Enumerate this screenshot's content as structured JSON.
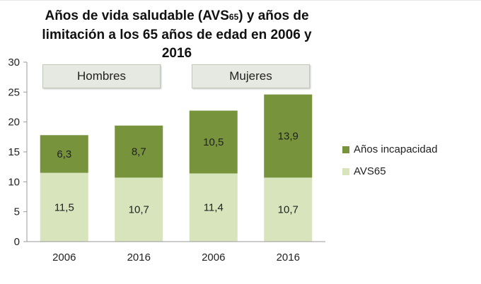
{
  "title": {
    "line1_pre": "Años de vida saludable (AVS",
    "line1_sub": "65",
    "line1_post": ") y años de",
    "line2": "limitación a los 65 años de edad en 2006 y 2016"
  },
  "chart_data": {
    "type": "bar",
    "stacked": true,
    "categories": [
      "2006",
      "2016",
      "2006",
      "2016"
    ],
    "groups": [
      {
        "label": "Hombres",
        "categories": [
          0,
          1
        ]
      },
      {
        "label": "Mujeres",
        "categories": [
          2,
          3
        ]
      }
    ],
    "series": [
      {
        "name": "AVS65",
        "values": [
          11.5,
          10.7,
          11.4,
          10.7
        ],
        "labels": [
          "11,5",
          "10,7",
          "11,4",
          "10,7"
        ],
        "color": "#d8e4bc"
      },
      {
        "name": "Años incapacidad",
        "values": [
          6.3,
          8.7,
          10.5,
          13.9
        ],
        "labels": [
          "6,3",
          "8,7",
          "10,5",
          "13,9"
        ],
        "color": "#77933c"
      }
    ],
    "ylim": [
      0,
      30
    ],
    "yticks": [
      0,
      5,
      10,
      15,
      20,
      25,
      30
    ],
    "xlabel": "",
    "ylabel": "",
    "grid": false,
    "legend_position": "right"
  }
}
